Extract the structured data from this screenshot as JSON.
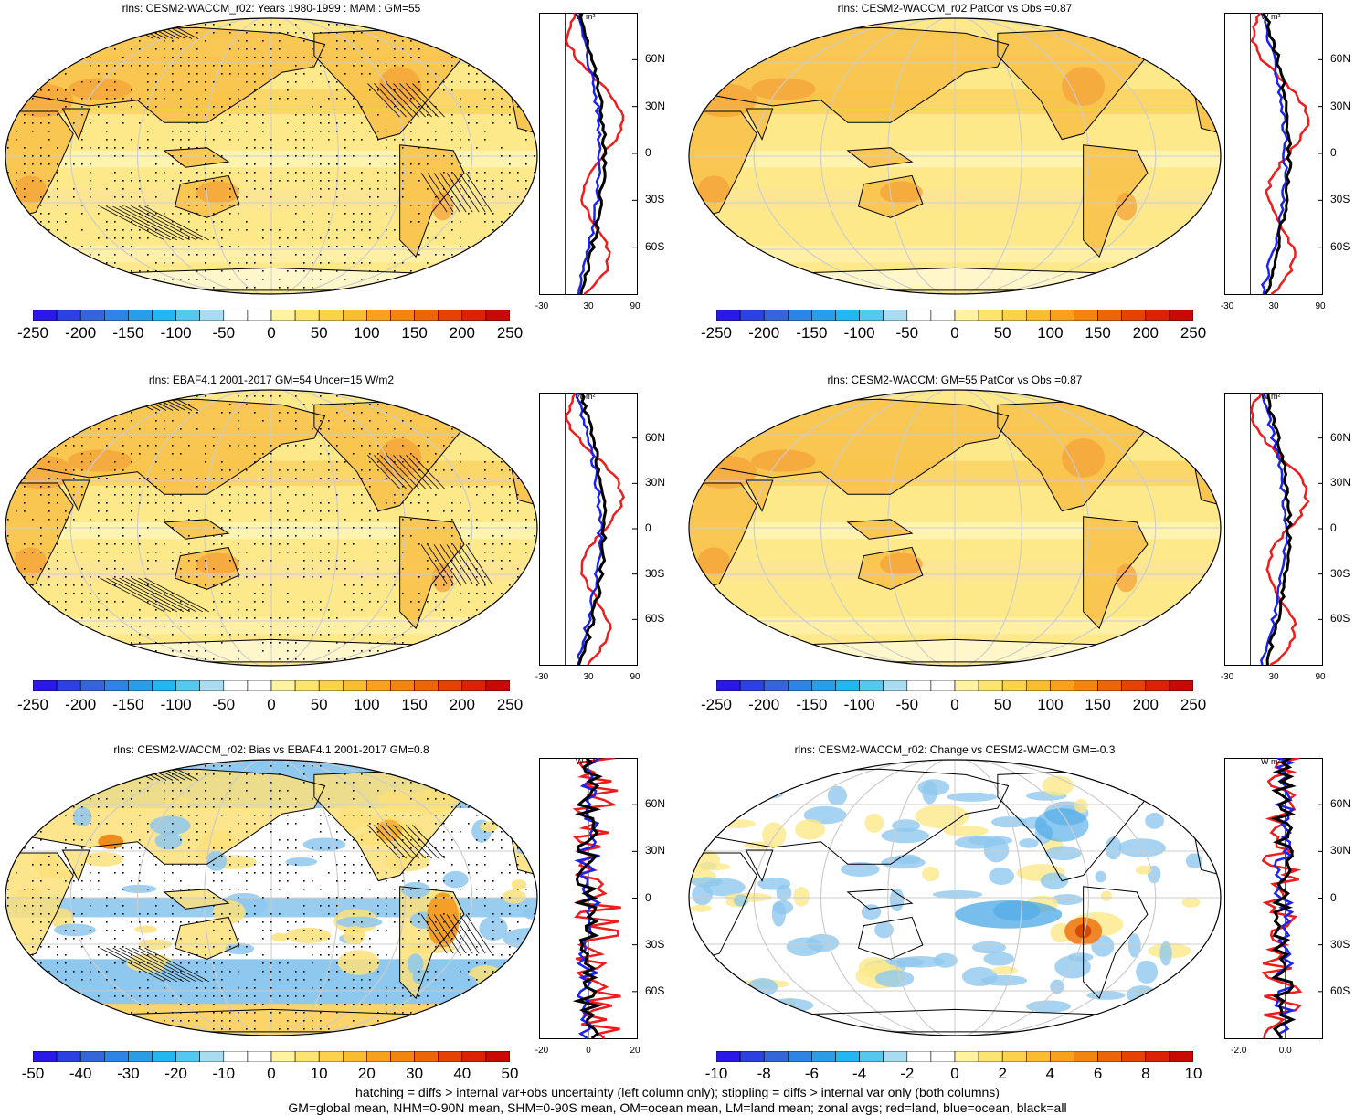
{
  "palettes": {
    "full": [
      "#2a18e6",
      "#2c41e0",
      "#3566d9",
      "#2e84e2",
      "#2a9de6",
      "#23b6f0",
      "#55c8f0",
      "#a8dcf0",
      "#ffffff",
      "#ffffff",
      "#fff3a0",
      "#fde370",
      "#fcd24d",
      "#fabd32",
      "#f7a11e",
      "#f28410",
      "#ec6508",
      "#e54205",
      "#dc2204",
      "#c80a05"
    ],
    "map_colors": {
      "ocean_base": "#fde98a",
      "land_warm": "#f8c34a",
      "hot": "#f4a23a",
      "cool_blue": "#8ec8ee",
      "deep_blue": "#3fa3e6",
      "white": "#ffffff"
    },
    "line_colors": {
      "land": "#ee1c1c",
      "ocean": "#1c22ee",
      "all": "#000000"
    }
  },
  "footer": {
    "line1": "hatching = diffs > internal var+obs uncertainty (left column only); stippling = diffs > internal var only (both columns)",
    "line2": "GM=global mean, NHM=0-90N mean, SHM=0-90S mean, OM=ocean mean, LM=land mean; zonal avgs; red=land, blue=ocean, black=all"
  },
  "zonal_lat_labels": [
    "60N",
    "30N",
    "0",
    "30S",
    "60S"
  ],
  "zonal_unit": "W m²",
  "chart_data": [
    {
      "id": "p1",
      "type": "heatmap",
      "title": "rlns: CESM2-WACCM_r02: Years 1980-1999 : MAM : GM=55",
      "colorbar_labels": [
        "-250",
        "-200",
        "-150",
        "-100",
        "-50",
        "0",
        "50",
        "100",
        "150",
        "200",
        "250"
      ],
      "zonal_xticks": [
        "-30",
        "30",
        "90"
      ],
      "zonal_xrange": [
        -30,
        90
      ],
      "stipple": true,
      "hatch": true,
      "style": "mean"
    },
    {
      "id": "p2",
      "type": "heatmap",
      "title": "rlns: CESM2-WACCM_r02 PatCor vs Obs =0.87",
      "colorbar_labels": [
        "-250",
        "-200",
        "-150",
        "-100",
        "-50",
        "0",
        "50",
        "100",
        "150",
        "200",
        "250"
      ],
      "zonal_xticks": [
        "-30",
        "30",
        "90"
      ],
      "zonal_xrange": [
        -30,
        90
      ],
      "stipple": false,
      "hatch": false,
      "style": "mean"
    },
    {
      "id": "p3",
      "type": "heatmap",
      "title": "rlns: EBAF4.1 2001-2017 GM=54 Uncer=15 W/m2",
      "colorbar_labels": [
        "-250",
        "-200",
        "-150",
        "-100",
        "-50",
        "0",
        "50",
        "100",
        "150",
        "200",
        "250"
      ],
      "zonal_xticks": [
        "-30",
        "30",
        "90"
      ],
      "zonal_xrange": [
        -30,
        90
      ],
      "stipple": true,
      "hatch": true,
      "style": "mean"
    },
    {
      "id": "p4",
      "type": "heatmap",
      "title": "rlns: CESM2-WACCM: GM=55 PatCor vs Obs =0.87",
      "colorbar_labels": [
        "-250",
        "-200",
        "-150",
        "-100",
        "-50",
        "0",
        "50",
        "100",
        "150",
        "200",
        "250"
      ],
      "zonal_xticks": [
        "-30",
        "30",
        "90"
      ],
      "zonal_xrange": [
        -30,
        90
      ],
      "stipple": false,
      "hatch": false,
      "style": "mean"
    },
    {
      "id": "p5",
      "type": "heatmap",
      "title": "rlns: CESM2-WACCM_r02: Bias vs EBAF4.1 2001-2017 GM=0.8",
      "colorbar_labels": [
        "-50",
        "-40",
        "-30",
        "-20",
        "-10",
        "0",
        "10",
        "20",
        "30",
        "40",
        "50"
      ],
      "zonal_xticks": [
        "-20",
        "0",
        "20"
      ],
      "zonal_xrange": [
        -20,
        20
      ],
      "stipple": true,
      "hatch": true,
      "style": "bias"
    },
    {
      "id": "p6",
      "type": "heatmap",
      "title": "rlns: CESM2-WACCM_r02: Change vs CESM2-WACCM GM=-0.3",
      "colorbar_labels": [
        "-10",
        "-8",
        "-6",
        "-4",
        "-2",
        "0",
        "2",
        "4",
        "6",
        "8",
        "10"
      ],
      "zonal_xticks": [
        "-2.0",
        "0.0"
      ],
      "zonal_xrange": [
        -2.5,
        1.5
      ],
      "stipple": false,
      "hatch": false,
      "style": "change"
    }
  ]
}
